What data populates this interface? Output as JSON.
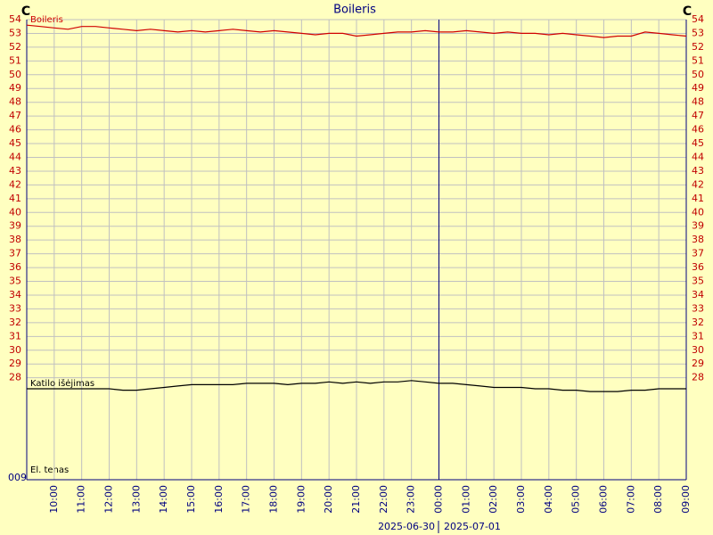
{
  "chart_data": {
    "type": "line",
    "title": "Boileris",
    "y_unit": "C",
    "x": [
      9,
      9.5,
      10,
      10.5,
      11,
      11.5,
      12,
      12.5,
      13,
      13.5,
      14,
      14.5,
      15,
      15.5,
      16,
      16.5,
      17,
      17.5,
      18,
      18.5,
      19,
      19.5,
      20,
      20.5,
      21,
      21.5,
      22,
      22.5,
      23,
      23.5,
      24,
      24.5,
      25,
      25.5,
      26,
      26.5,
      27,
      27.5,
      28,
      28.5,
      29,
      29.5,
      30,
      30.5,
      31,
      31.5,
      32,
      32.5,
      33
    ],
    "series": [
      {
        "name": "Boileris",
        "color": "#d00000",
        "values": [
          53.6,
          53.5,
          53.4,
          53.3,
          53.5,
          53.5,
          53.4,
          53.3,
          53.2,
          53.3,
          53.2,
          53.1,
          53.2,
          53.1,
          53.2,
          53.3,
          53.2,
          53.1,
          53.2,
          53.1,
          53.0,
          52.9,
          53.0,
          53.0,
          52.8,
          52.9,
          53.0,
          53.1,
          53.1,
          53.2,
          53.1,
          53.1,
          53.2,
          53.1,
          53.0,
          53.1,
          53.0,
          53.0,
          52.9,
          53.0,
          52.9,
          52.8,
          52.7,
          52.8,
          52.8,
          53.1,
          53.0,
          52.9,
          52.8
        ]
      },
      {
        "name": "Katilo išėjimas",
        "color": "#000000",
        "values": [
          27.2,
          27.2,
          27.2,
          27.2,
          27.2,
          27.2,
          27.2,
          27.1,
          27.1,
          27.2,
          27.3,
          27.4,
          27.5,
          27.5,
          27.5,
          27.5,
          27.6,
          27.6,
          27.6,
          27.5,
          27.6,
          27.6,
          27.7,
          27.6,
          27.7,
          27.6,
          27.7,
          27.7,
          27.8,
          27.7,
          27.6,
          27.6,
          27.5,
          27.4,
          27.3,
          27.3,
          27.3,
          27.2,
          27.2,
          27.1,
          27.1,
          27.0,
          27.0,
          27.0,
          27.1,
          27.1,
          27.2,
          27.2,
          27.2
        ]
      }
    ],
    "annotations": [
      "El. tenas",
      "009"
    ],
    "dates": [
      "2025-06-30",
      "2025-07-01"
    ],
    "day_break": 24,
    "xlim": [
      9,
      33
    ],
    "xticks": [
      {
        "value": 10,
        "label": "10:00"
      },
      {
        "value": 11,
        "label": "11:00"
      },
      {
        "value": 12,
        "label": "12:00"
      },
      {
        "value": 13,
        "label": "13:00"
      },
      {
        "value": 14,
        "label": "14:00"
      },
      {
        "value": 15,
        "label": "15:00"
      },
      {
        "value": 16,
        "label": "16:00"
      },
      {
        "value": 17,
        "label": "17:00"
      },
      {
        "value": 18,
        "label": "18:00"
      },
      {
        "value": 19,
        "label": "19:00"
      },
      {
        "value": 20,
        "label": "20:00"
      },
      {
        "value": 21,
        "label": "21:00"
      },
      {
        "value": 22,
        "label": "22:00"
      },
      {
        "value": 23,
        "label": "23:00"
      },
      {
        "value": 24,
        "label": "00:00"
      },
      {
        "value": 25,
        "label": "01:00"
      },
      {
        "value": 26,
        "label": "02:00"
      },
      {
        "value": 27,
        "label": "03:00"
      },
      {
        "value": 28,
        "label": "04:00"
      },
      {
        "value": 29,
        "label": "05:00"
      },
      {
        "value": 30,
        "label": "06:00"
      },
      {
        "value": 31,
        "label": "07:00"
      },
      {
        "value": 32,
        "label": "08:00"
      },
      {
        "value": 33,
        "label": "09:00"
      }
    ],
    "ylim": [
      20.6,
      54
    ],
    "yticks": [
      28,
      29,
      30,
      31,
      32,
      33,
      34,
      35,
      36,
      37,
      38,
      39,
      40,
      41,
      42,
      43,
      44,
      45,
      46,
      47,
      48,
      49,
      50,
      51,
      52,
      53,
      54
    ],
    "grid": true
  }
}
